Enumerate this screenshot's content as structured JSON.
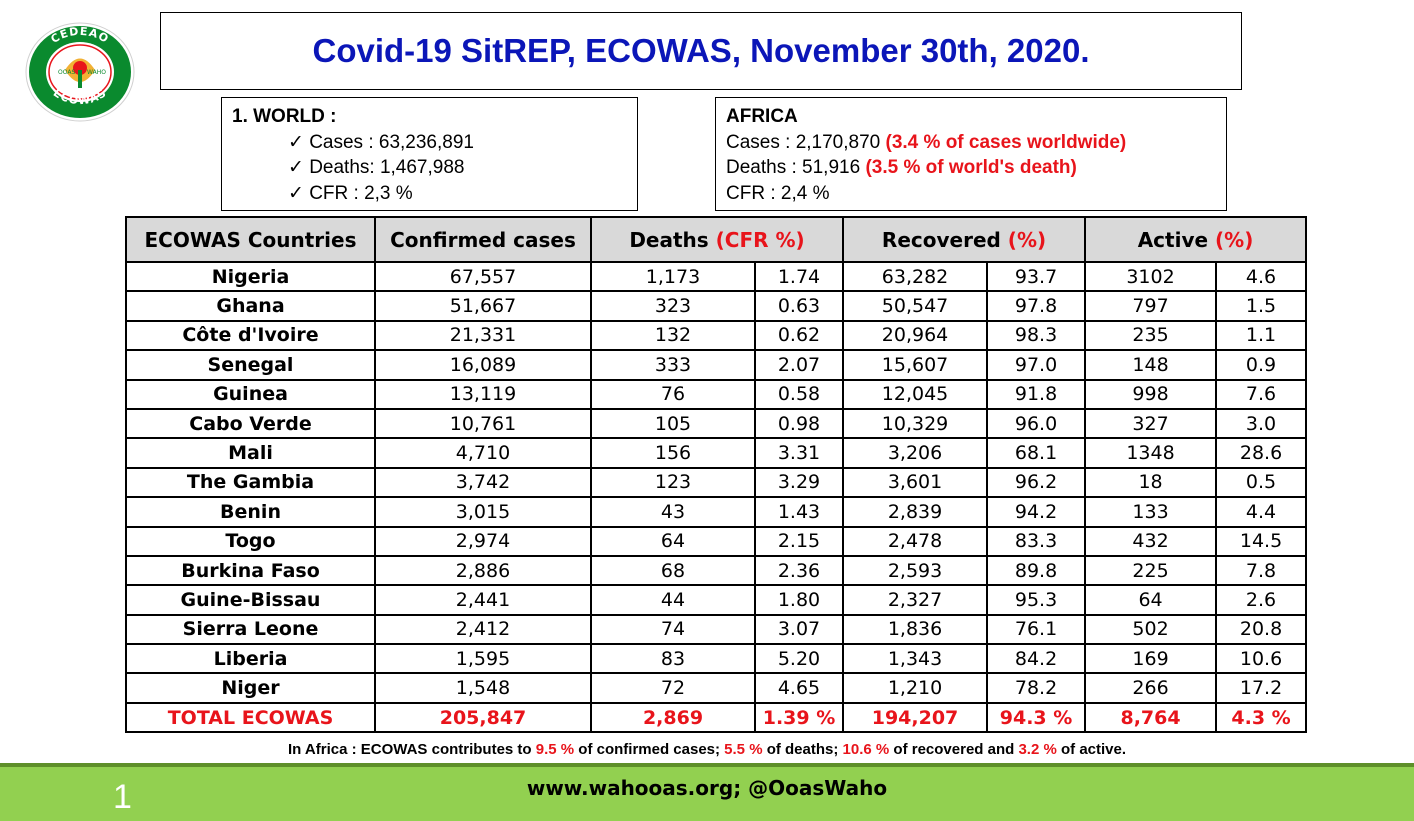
{
  "logo": {
    "top_text": "CEDEAO",
    "bottom_text": "ECOWAS",
    "inner_left": "OOAS",
    "inner_right": "WAHO",
    "ring_color": "#0a8a2e"
  },
  "title": "Covid-19 SitREP, ECOWAS, November 30th, 2020.",
  "world": {
    "heading": "1. WORLD :",
    "items": [
      "✓ Cases : 63,236,891",
      "✓ Deaths: 1,467,988",
      "✓ CFR : 2,3 %"
    ]
  },
  "africa": {
    "heading": "AFRICA",
    "cases_label": "Cases : 2,170,870 ",
    "cases_note": "(3.4 % of cases worldwide)",
    "deaths_label": "Deaths : 51,916 ",
    "deaths_note": "(3.5 % of world's death)",
    "cfr": "CFR : 2,4 %"
  },
  "table": {
    "headers": {
      "country": "ECOWAS Countries",
      "confirmed": "Confirmed cases",
      "deaths": "Deaths ",
      "deaths_pct": "(CFR %)",
      "recovered": "Recovered ",
      "recovered_pct": "(%)",
      "active": "Active ",
      "active_pct": "(%)"
    },
    "rows": [
      [
        "Nigeria",
        "67,557",
        "1,173",
        "1.74",
        "63,282",
        "93.7",
        "3102",
        "4.6"
      ],
      [
        "Ghana",
        "51,667",
        "323",
        "0.63",
        "50,547",
        "97.8",
        "797",
        "1.5"
      ],
      [
        "Côte d'Ivoire",
        "21,331",
        "132",
        "0.62",
        "20,964",
        "98.3",
        "235",
        "1.1"
      ],
      [
        "Senegal",
        "16,089",
        "333",
        "2.07",
        "15,607",
        "97.0",
        "148",
        "0.9"
      ],
      [
        "Guinea",
        "13,119",
        "76",
        "0.58",
        "12,045",
        "91.8",
        "998",
        "7.6"
      ],
      [
        "Cabo Verde",
        "10,761",
        "105",
        "0.98",
        "10,329",
        "96.0",
        "327",
        "3.0"
      ],
      [
        "Mali",
        "4,710",
        "156",
        "3.31",
        "3,206",
        "68.1",
        "1348",
        "28.6"
      ],
      [
        "The Gambia",
        "3,742",
        "123",
        "3.29",
        "3,601",
        "96.2",
        "18",
        "0.5"
      ],
      [
        "Benin",
        "3,015",
        "43",
        "1.43",
        "2,839",
        "94.2",
        "133",
        "4.4"
      ],
      [
        "Togo",
        "2,974",
        "64",
        "2.15",
        "2,478",
        "83.3",
        "432",
        "14.5"
      ],
      [
        "Burkina Faso",
        "2,886",
        "68",
        "2.36",
        "2,593",
        "89.8",
        "225",
        "7.8"
      ],
      [
        "Guine-Bissau",
        "2,441",
        "44",
        "1.80",
        "2,327",
        "95.3",
        "64",
        "2.6"
      ],
      [
        "Sierra Leone",
        "2,412",
        "74",
        "3.07",
        "1,836",
        "76.1",
        "502",
        "20.8"
      ],
      [
        "Liberia",
        "1,595",
        "83",
        "5.20",
        "1,343",
        "84.2",
        "169",
        "10.6"
      ],
      [
        "Niger",
        "1,548",
        "72",
        "4.65",
        "1,210",
        "78.2",
        "266",
        "17.2"
      ]
    ],
    "total": [
      "TOTAL ECOWAS",
      "205,847",
      "2,869",
      "1.39 %",
      "194,207",
      "94.3 %",
      "8,764",
      "4.3 %"
    ]
  },
  "footnote": {
    "p1": "In Africa : ECOWAS contributes to ",
    "v1": "9.5 %",
    "p2": " of confirmed cases; ",
    "v2": "5.5 %",
    "p3": " of deaths; ",
    "v3": "10.6 %",
    "p4": " of recovered and ",
    "v4": "3.2 %",
    "p5": " of active."
  },
  "footer": {
    "slide_number": "1",
    "text": "www.wahooas.org; @OoasWaho"
  },
  "colors": {
    "title_blue": "#0b16b8",
    "highlight_red": "#e8141b",
    "footer_green": "#92d050",
    "header_gray": "#d9d9d9"
  }
}
